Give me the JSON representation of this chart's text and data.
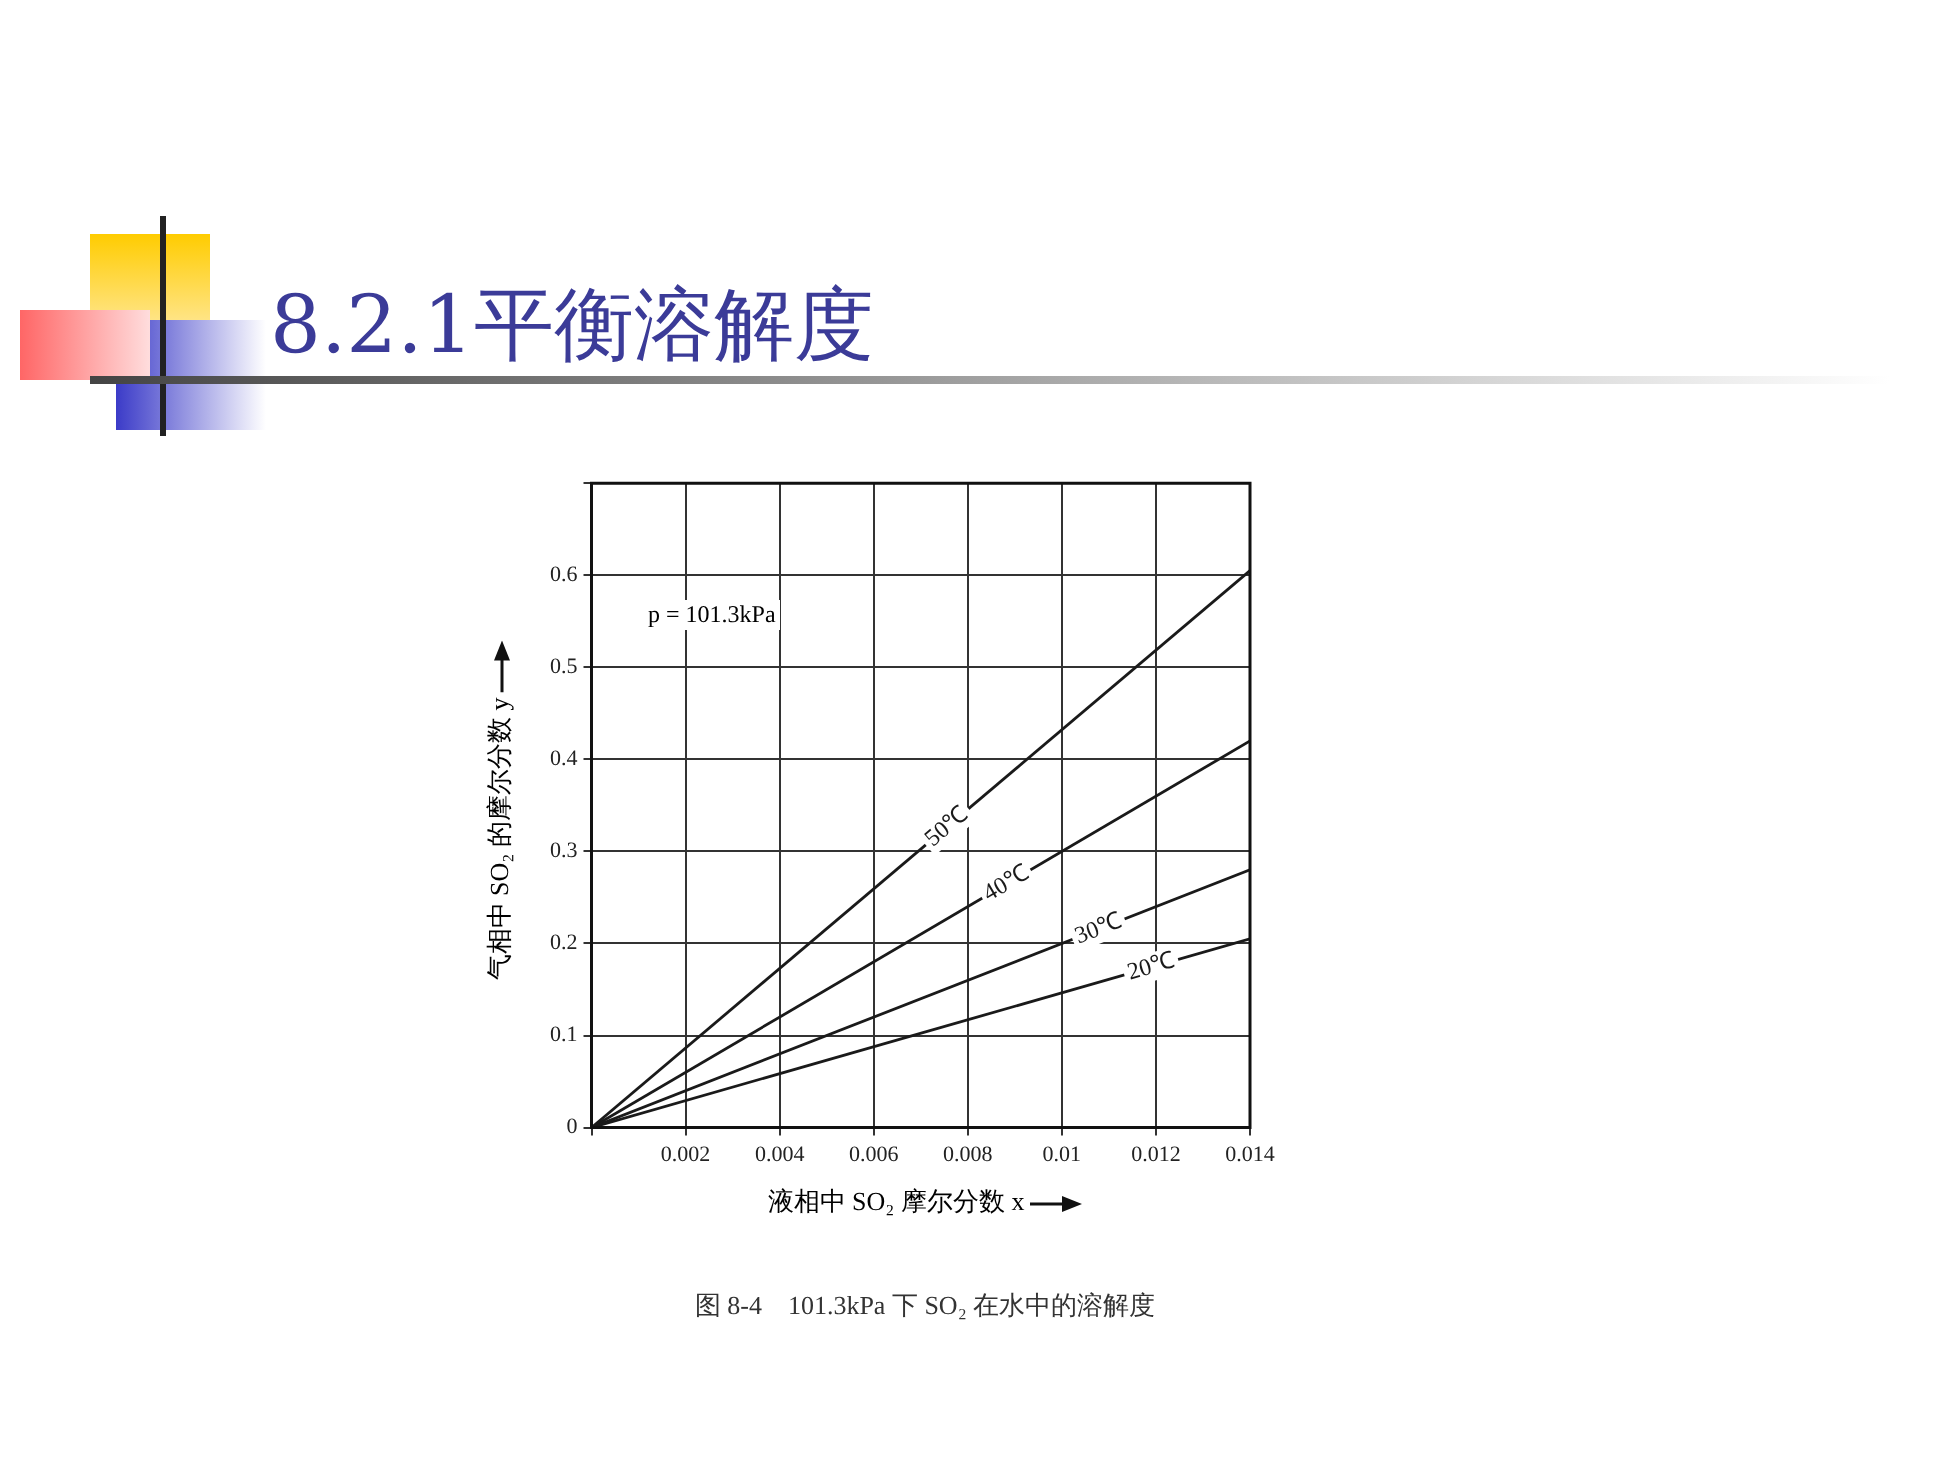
{
  "chart_data": {
    "type": "line",
    "title": "8.2.1平衡溶解度",
    "xlabel": "液相中 SO₂ 摩尔分数 x",
    "ylabel": "气相中 SO₂ 的摩尔分数 y",
    "x": [
      0,
      0.014
    ],
    "series": [
      {
        "name": "50℃",
        "color": "#1a1a1a",
        "values": [
          0,
          0.605
        ]
      },
      {
        "name": "40℃",
        "color": "#1a1a1a",
        "values": [
          0,
          0.42
        ]
      },
      {
        "name": "30℃",
        "color": "#1a1a1a",
        "values": [
          0,
          0.28
        ]
      },
      {
        "name": "20℃",
        "color": "#1a1a1a",
        "values": [
          0,
          0.205
        ]
      }
    ],
    "xlim": [
      0,
      0.014
    ],
    "xticks": [
      {
        "value": 0,
        "label": null
      },
      0.002,
      0.004,
      0.006,
      0.008,
      0.01,
      0.012,
      0.014
    ],
    "ylim": [
      0,
      0.7
    ],
    "yticks": [
      0,
      0.1,
      0.2,
      0.3,
      0.4,
      0.5,
      0.6,
      {
        "value": 0.7,
        "label": null
      }
    ],
    "grid": true,
    "legend": false,
    "marker": "none",
    "line_style": "solid",
    "annotations": [
      "p = 101.3kPa",
      "图 8-4　101.3kPa 下 SO₂ 在水中的溶解度"
    ]
  }
}
